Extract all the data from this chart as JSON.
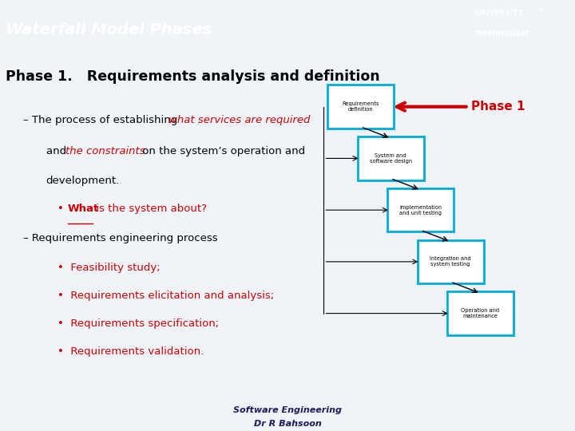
{
  "title": "Waterfall Model Phases",
  "header_bg": "#1a3a9c",
  "header_text_color": "#ffffff",
  "slide_bg": "#f0f4f8",
  "footer_bg": "#b0c8d8",
  "phase_title": "Phase 1.   Requirements analysis and definition",
  "phase_title_color": "#000000",
  "red_color": "#cc0000",
  "bullet2": "– Requirements engineering process",
  "items": [
    "Feasibility study;",
    "Requirements elicitation and analysis;",
    "Requirements specification;",
    "Requirements validation."
  ],
  "waterfall_boxes": [
    "Requirements\ndefinition",
    "System and\nsoftware design",
    "Implementation\nand unit testing",
    "Integration and\nsystem testing",
    "Operation and\nmaintenance"
  ],
  "box_bg": "#ffffff",
  "box_border": "#00aadd",
  "phase1_label": "Phase 1",
  "phase1_label_color": "#cc0000"
}
